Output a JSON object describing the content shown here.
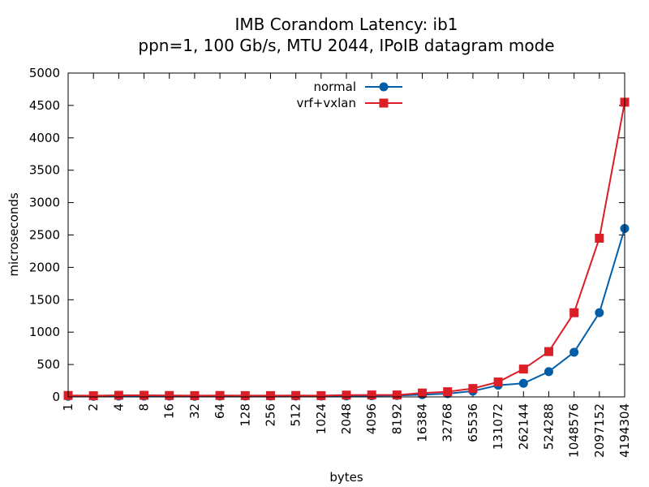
{
  "chart_data": {
    "type": "line",
    "title": "IMB Corandom Latency: ib1",
    "subtitle": "ppn=1, 100 Gb/s, MTU 2044, IPoIB datagram mode",
    "xlabel": "bytes",
    "ylabel": "microseconds",
    "ylim": [
      0,
      5000
    ],
    "yticks": [
      "0",
      "500",
      "1000",
      "1500",
      "2000",
      "2500",
      "3000",
      "3500",
      "4000",
      "4500",
      "5000"
    ],
    "categories": [
      "1",
      "2",
      "4",
      "8",
      "16",
      "32",
      "64",
      "128",
      "256",
      "512",
      "1024",
      "2048",
      "4096",
      "8192",
      "16384",
      "32768",
      "65536",
      "131072",
      "262144",
      "524288",
      "1048576",
      "2097152",
      "4194304"
    ],
    "legend_position": "top-center",
    "grid": false,
    "series": [
      {
        "name": "normal",
        "color": "#005ea8",
        "marker": "circle",
        "values": [
          10,
          10,
          12,
          12,
          12,
          10,
          12,
          12,
          12,
          12,
          12,
          15,
          18,
          22,
          35,
          50,
          90,
          180,
          210,
          390,
          690,
          1300,
          2600
        ]
      },
      {
        "name": "vrf+vxlan",
        "color": "#dc1e26",
        "marker": "square",
        "values": [
          22,
          18,
          25,
          25,
          22,
          20,
          22,
          20,
          20,
          22,
          20,
          28,
          30,
          30,
          60,
          80,
          130,
          230,
          430,
          700,
          1300,
          2450,
          4550
        ]
      }
    ]
  }
}
